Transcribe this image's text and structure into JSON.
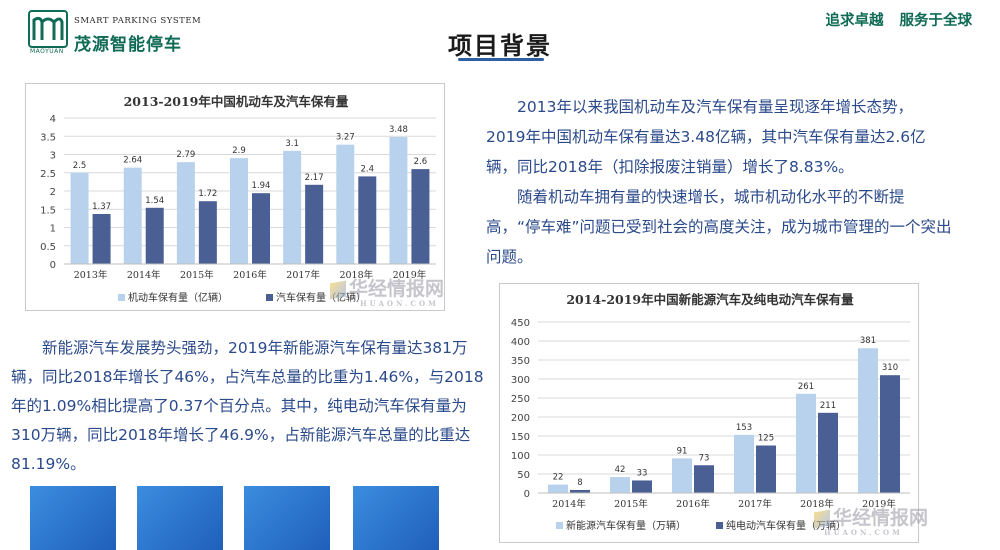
{
  "logo": {
    "english": "SMART PARKING SYSTEM",
    "chinese": "茂源智能停车",
    "mark_text": "MAOYUAN"
  },
  "slogan": {
    "part1": "追求卓越",
    "part2": "服务于全球"
  },
  "page_title": "项目背景",
  "paragraph1": {
    "p1": "2013年以来我国机动车及汽车保有量呈现逐年增长态势，2019年中国机动车保有量达3.48亿辆，其中汽车保有量达2.6亿辆，同比2018年（扣除报废注销量）增长了8.83%。",
    "p2": "随着机动车拥有量的快速增长，城市机动化水平的不断提高，“停车难”问题已受到社会的高度关注，成为城市管理的一个突出问题。"
  },
  "paragraph2": {
    "p1": "新能源汽车发展势头强劲，2019年新能源汽车保有量达381万辆，同比2018年增长了46%，占汽车总量的比重为1.46%，与2018年的1.09%相比提高了0.37个百分点。其中，纯电动汽车保有量为310万辆，同比2018年增长了46.9%，占新能源汽车总量的比重达81.19%。"
  },
  "watermark": {
    "text": "华经情报网",
    "url": "HUAON.COM"
  },
  "colors": {
    "brand_green": "#0f6b55",
    "text_blue": "#2b4a8a",
    "series_light": "#b8d2ee",
    "series_dark": "#4a5f94",
    "tile_blue": "#2a75cf"
  },
  "chart_data": [
    {
      "type": "bar",
      "title": "2013-2019年中国机动车及汽车保有量",
      "categories": [
        "2013年",
        "2014年",
        "2015年",
        "2016年",
        "2017年",
        "2018年",
        "2019年"
      ],
      "series": [
        {
          "name": "机动车保有量（亿辆）",
          "values": [
            2.5,
            2.64,
            2.79,
            2.9,
            3.1,
            3.27,
            3.48
          ]
        },
        {
          "name": "汽车保有量（亿辆）",
          "values": [
            1.37,
            1.54,
            1.72,
            1.94,
            2.17,
            2.4,
            2.6
          ]
        }
      ],
      "yticks": [
        "0",
        "0.5",
        "1",
        "1.5",
        "2",
        "2.5",
        "3",
        "3.5",
        "4"
      ],
      "ylim": [
        0,
        4
      ],
      "grid": true,
      "legend": "bottom"
    },
    {
      "type": "bar",
      "title": "2014-2019年中国新能源汽车及纯电动汽车保有量",
      "categories": [
        "2014年",
        "2015年",
        "2016年",
        "2017年",
        "2018年",
        "2019年"
      ],
      "series": [
        {
          "name": "新能源汽车保有量（万辆）",
          "values": [
            22,
            42,
            91,
            153,
            261,
            381
          ]
        },
        {
          "name": "纯电动汽车保有量（万辆）",
          "values": [
            8,
            33,
            73,
            125,
            211,
            310
          ]
        }
      ],
      "yticks": [
        "0",
        "50",
        "100",
        "150",
        "200",
        "250",
        "300",
        "350",
        "400",
        "450"
      ],
      "ylim": [
        0,
        450
      ],
      "grid": true,
      "legend": "bottom"
    }
  ]
}
